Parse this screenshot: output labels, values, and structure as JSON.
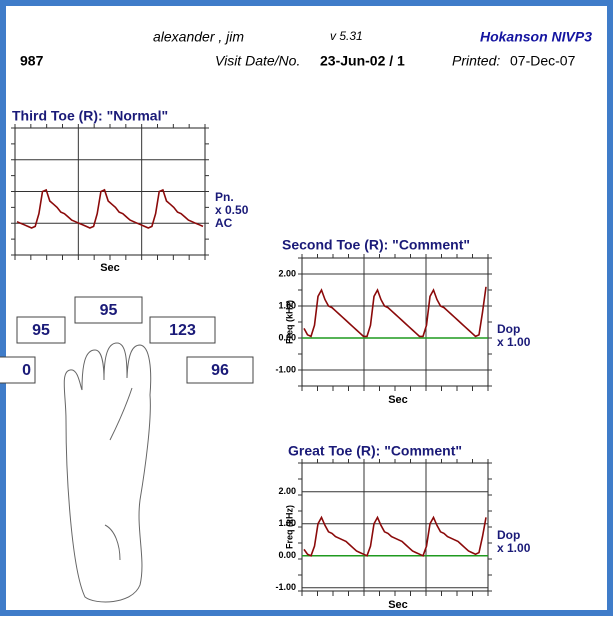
{
  "header": {
    "patient": "alexander ,  jim",
    "version": "v 5.31",
    "brand": "Hokanson NIVP3",
    "id": "987",
    "visit_label": "Visit Date/No.",
    "visit": "23-Jun-02 / 1",
    "printed_label": "Printed:",
    "printed": "07-Dec-07"
  },
  "charts": [
    {
      "type": "line",
      "title": "Third Toe (R): \"Normal\"",
      "x_label": "Sec",
      "scale_label": [
        "Pn.",
        "x 0.50",
        "AC"
      ],
      "ylim": [
        0,
        4
      ],
      "color": "#8b0a0a",
      "values": [
        1.05,
        1.0,
        0.95,
        0.9,
        0.85,
        0.9,
        1.3,
        2.0,
        2.05,
        1.7,
        1.6,
        1.5,
        1.35,
        1.3,
        1.2,
        1.1,
        1.05,
        1.0,
        0.95,
        0.9,
        0.85,
        0.9,
        1.3,
        2.0,
        2.05,
        1.7,
        1.6,
        1.5,
        1.35,
        1.3,
        1.2,
        1.1,
        1.05,
        1.0,
        0.95,
        0.9,
        0.85,
        0.9,
        1.3,
        2.0,
        2.05,
        1.7,
        1.6,
        1.5,
        1.35,
        1.3,
        1.2,
        1.1,
        1.05,
        1.0,
        0.95,
        0.9
      ]
    },
    {
      "type": "line",
      "title": "Second Toe (R): \"Comment\"",
      "x_label": "Sec",
      "y_label": "Freq (kHz)",
      "scale_label": [
        "Dop",
        "x 1.00"
      ],
      "ylim": [
        -1.5,
        2.5
      ],
      "yticks": [
        {
          "value": 2,
          "label": "2.00"
        },
        {
          "value": 1,
          "label": "1.00"
        },
        {
          "value": 0,
          "label": "0.00"
        },
        {
          "value": -1,
          "label": "-1.00"
        }
      ],
      "zero_color": "#1f9a1f",
      "color": "#8b0a0a",
      "values": [
        0.3,
        0.1,
        0.05,
        0.4,
        1.3,
        1.5,
        1.2,
        1.0,
        0.95,
        0.85,
        0.75,
        0.65,
        0.55,
        0.45,
        0.35,
        0.25,
        0.15,
        0.05,
        0.05,
        0.4,
        1.3,
        1.5,
        1.2,
        1.0,
        0.95,
        0.85,
        0.75,
        0.65,
        0.55,
        0.45,
        0.35,
        0.25,
        0.15,
        0.05,
        0.05,
        0.4,
        1.3,
        1.5,
        1.2,
        1.0,
        0.95,
        0.85,
        0.75,
        0.65,
        0.55,
        0.45,
        0.35,
        0.25,
        0.15,
        0.05,
        0.1,
        0.8,
        1.6
      ]
    },
    {
      "type": "line",
      "title": "Great Toe (R): \"Comment\"",
      "x_label": "Sec",
      "y_label": "Freq (kHz)",
      "scale_label": [
        "Dop",
        "x 1.00"
      ],
      "ylim": [
        -1.1,
        2.9
      ],
      "yticks": [
        {
          "value": 2,
          "label": "2.00"
        },
        {
          "value": 1,
          "label": "1.00"
        },
        {
          "value": 0,
          "label": "0.00"
        },
        {
          "value": -1,
          "label": "-1.00"
        }
      ],
      "zero_color": "#1f9a1f",
      "color": "#8b0a0a",
      "values": [
        0.2,
        0.05,
        0.0,
        0.3,
        1.0,
        1.2,
        0.95,
        0.75,
        0.7,
        0.6,
        0.55,
        0.5,
        0.45,
        0.35,
        0.25,
        0.15,
        0.1,
        0.05,
        0.0,
        0.3,
        1.0,
        1.2,
        0.95,
        0.75,
        0.7,
        0.6,
        0.55,
        0.5,
        0.45,
        0.35,
        0.25,
        0.15,
        0.1,
        0.05,
        0.0,
        0.3,
        1.0,
        1.2,
        0.95,
        0.75,
        0.7,
        0.6,
        0.55,
        0.5,
        0.45,
        0.35,
        0.25,
        0.15,
        0.1,
        0.05,
        0.1,
        0.6,
        1.2
      ]
    }
  ],
  "pressures": [
    95,
    95,
    123,
    96,
    0
  ]
}
